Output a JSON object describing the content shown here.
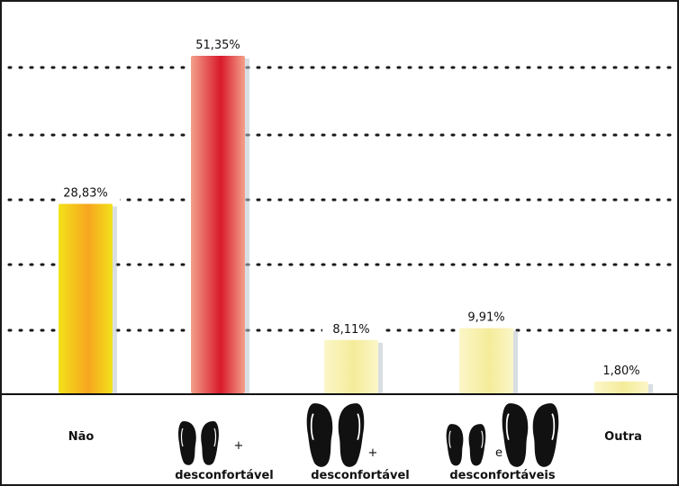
{
  "chart_data": {
    "type": "bar",
    "categories": [
      "Não",
      "+ desconfortável",
      "+ desconfortável",
      "e desconfortáveis",
      "Outra"
    ],
    "values": [
      28.83,
      51.35,
      8.11,
      9.91,
      1.8
    ],
    "value_labels": [
      "28,83%",
      "51,35%",
      "8,11%",
      "9,91%",
      "1,80%"
    ],
    "category_labels": [
      "Não",
      "desconfortável",
      "desconfortável",
      "desconfortáveis",
      "Outra"
    ],
    "connectors": [
      "",
      "+",
      "+",
      "e",
      ""
    ],
    "category_icons": [
      "",
      "small-feet-icon",
      "large-feet-icon",
      "small-and-large-feet-icon",
      ""
    ],
    "bar_colors": [
      [
        "#f2e21a",
        "#f7a51f"
      ],
      [
        "#f3a08a",
        "#d91a2a"
      ],
      [
        "#fbf6c8",
        "#f4ec9a"
      ],
      [
        "#fbf6c8",
        "#f4ec9a"
      ],
      [
        "#fbf6c8",
        "#f4ec9a"
      ]
    ],
    "ylim": [
      0,
      55
    ],
    "grid": "dotted horizontal",
    "title": "",
    "xlabel": "",
    "ylabel": ""
  }
}
